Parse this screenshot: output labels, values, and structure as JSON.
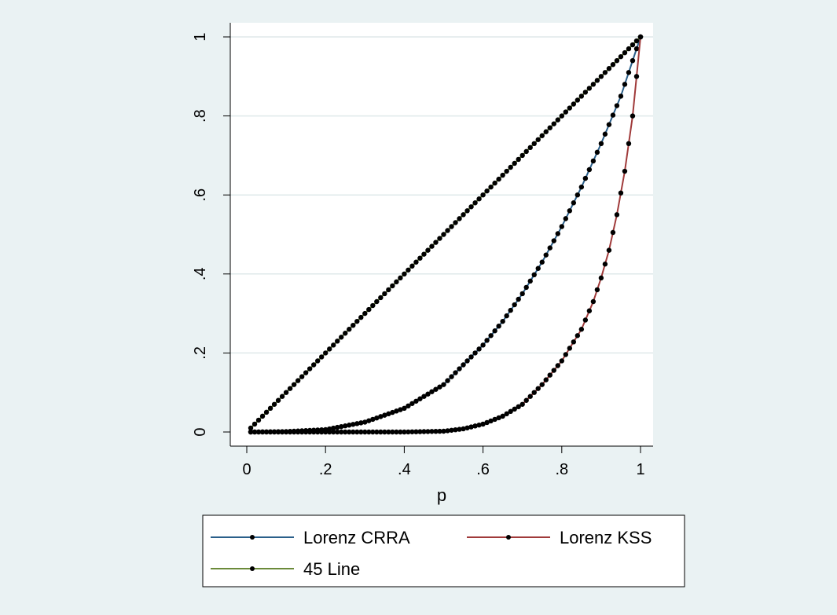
{
  "chart_data": {
    "type": "line",
    "title": "",
    "xlabel": "p",
    "ylabel": "",
    "xlim": [
      0,
      1
    ],
    "ylim": [
      0,
      1
    ],
    "xticks": [
      0,
      0.2,
      0.4,
      0.6,
      0.8,
      1
    ],
    "xtick_labels": [
      "0",
      ".2",
      ".4",
      ".6",
      ".8",
      "1"
    ],
    "yticks": [
      0,
      0.2,
      0.4,
      0.6,
      0.8,
      1
    ],
    "ytick_labels": [
      "0",
      ".2",
      ".4",
      ".6",
      ".8",
      "1"
    ],
    "grid": "horizontal",
    "legend_position": "bottom",
    "series": [
      {
        "name": "Lorenz CRRA",
        "color": "#2a5f8a",
        "marker_color": "#000000",
        "x": [
          0.01,
          0.1,
          0.2,
          0.3,
          0.4,
          0.5,
          0.6,
          0.65,
          0.7,
          0.75,
          0.8,
          0.85,
          0.9,
          0.95,
          1.0
        ],
        "y": [
          0.0,
          0.001,
          0.006,
          0.025,
          0.06,
          0.12,
          0.22,
          0.28,
          0.35,
          0.43,
          0.52,
          0.62,
          0.73,
          0.85,
          1.0
        ]
      },
      {
        "name": "Lorenz KSS",
        "color": "#a03a3a",
        "marker_color": "#000000",
        "x": [
          0.01,
          0.2,
          0.4,
          0.5,
          0.55,
          0.6,
          0.65,
          0.7,
          0.75,
          0.8,
          0.85,
          0.88,
          0.9,
          0.92,
          0.94,
          0.96,
          0.98,
          1.0
        ],
        "y": [
          0.0,
          0.0,
          0.0,
          0.002,
          0.008,
          0.02,
          0.04,
          0.07,
          0.12,
          0.18,
          0.26,
          0.33,
          0.39,
          0.46,
          0.55,
          0.66,
          0.8,
          1.0
        ]
      },
      {
        "name": "45 Line",
        "color": "#6b8a3a",
        "marker_color": "#000000",
        "x": [
          0.01,
          1.0
        ],
        "y": [
          0.01,
          1.0
        ]
      }
    ]
  }
}
